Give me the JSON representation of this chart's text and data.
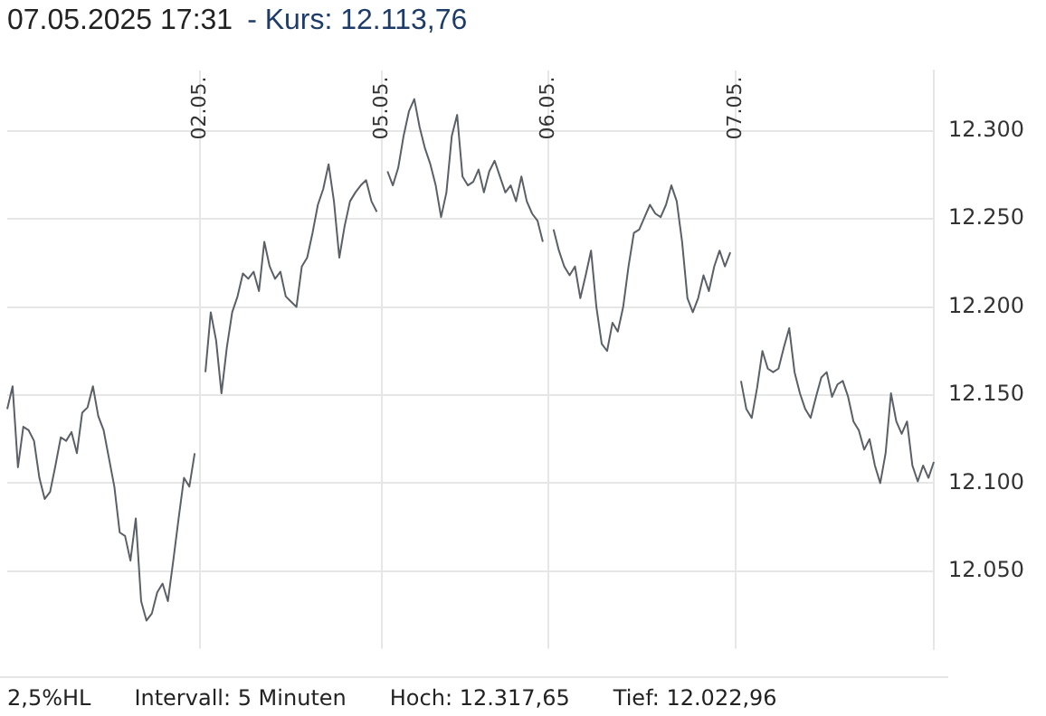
{
  "chart_data": {
    "type": "line",
    "title": "07.05.2025  17:31",
    "subtitle": "- Kurs: 12.113,76",
    "annotations": [
      "2,5%HL",
      "Intervall: 5 Minuten",
      "Hoch: 12.317,65",
      "Tief: 12.022,96"
    ],
    "categories": [
      null,
      null,
      null,
      null,
      null,
      null,
      null,
      null,
      null,
      null,
      null,
      null,
      null,
      null,
      null,
      null,
      null,
      null,
      null,
      null,
      null,
      null,
      null,
      null,
      null,
      null,
      null,
      null,
      null,
      null,
      null,
      null,
      null,
      null,
      null,
      null,
      "02.05.",
      null,
      null,
      null,
      null,
      null,
      null,
      null,
      null,
      null,
      null,
      null,
      null,
      null,
      null,
      null,
      null,
      null,
      null,
      null,
      null,
      null,
      null,
      null,
      null,
      null,
      null,
      null,
      null,
      null,
      null,
      null,
      null,
      null,
      "05.05.",
      null,
      null,
      null,
      null,
      null,
      null,
      null,
      null,
      null,
      null,
      null,
      null,
      null,
      null,
      null,
      null,
      null,
      null,
      null,
      null,
      null,
      null,
      null,
      null,
      null,
      null,
      null,
      null,
      null,
      null,
      "06.05.",
      null,
      null,
      null,
      null,
      null,
      null,
      null,
      null,
      null,
      null,
      null,
      null,
      null,
      null,
      null,
      null,
      null,
      null,
      null,
      null,
      null,
      null,
      null,
      null,
      null,
      null,
      null,
      null,
      null,
      null,
      null,
      null,
      null,
      null,
      "07.05.",
      null,
      null,
      null,
      null,
      null,
      null,
      null,
      null,
      null,
      null,
      null,
      null,
      null,
      null,
      null,
      null,
      null,
      null,
      null,
      null,
      null,
      null,
      null,
      null,
      null,
      null,
      null,
      null,
      null,
      null,
      null,
      null,
      null,
      null,
      null,
      null,
      null
    ],
    "series": [
      {
        "color": "#5b6067",
        "values": [
          12142,
          12155,
          12109,
          12132,
          12130,
          12124,
          12103,
          12091,
          12095,
          12110,
          12126,
          12124,
          12129,
          12117,
          12140,
          12143,
          12155,
          12138,
          12130,
          12114,
          12098,
          12072,
          12070,
          12056,
          12080,
          12033,
          12022,
          12026,
          12038,
          12043,
          12033,
          12056,
          12080,
          12103,
          12098,
          12117,
          null,
          12163,
          12197,
          12181,
          12151,
          12177,
          12197,
          12206,
          12219,
          12216,
          12220,
          12209,
          12237,
          12223,
          12216,
          12220,
          12206,
          12203,
          12200,
          12223,
          12228,
          12242,
          12258,
          12267,
          12281,
          12260,
          12228,
          12246,
          12260,
          12265,
          12269,
          12272,
          12260,
          12254,
          null,
          12277,
          12269,
          12279,
          12297,
          12311,
          12318,
          12302,
          12290,
          12281,
          12269,
          12251,
          12265,
          12297,
          12309,
          12274,
          12269,
          12271,
          12278,
          12265,
          12277,
          12283,
          12274,
          12265,
          12269,
          12260,
          12274,
          12260,
          12253,
          12249,
          12237,
          null,
          12244,
          12232,
          12223,
          12218,
          12223,
          12205,
          12218,
          12232,
          12200,
          12179,
          12175,
          12191,
          12186,
          12200,
          12223,
          12242,
          12244,
          12251,
          12258,
          12253,
          12251,
          12258,
          12269,
          12260,
          12237,
          12205,
          12197,
          12205,
          12218,
          12209,
          12223,
          12232,
          12223,
          12231,
          null,
          12158,
          12142,
          12137,
          12154,
          12175,
          12165,
          12163,
          12165,
          12177,
          12188,
          12163,
          12151,
          12142,
          12137,
          12149,
          12160,
          12163,
          12149,
          12156,
          12158,
          12149,
          12135,
          12130,
          12119,
          12125,
          12110,
          12100,
          12117,
          12151,
          12135,
          12128,
          12135,
          12110,
          12101,
          12110,
          12103,
          12112
        ]
      }
    ],
    "ylim": [
      12006,
      12334
    ],
    "yticks": [
      {
        "value": 12050,
        "label": "12.050"
      },
      {
        "value": 12100,
        "label": "12.100"
      },
      {
        "value": 12150,
        "label": "12.150"
      },
      {
        "value": 12200,
        "label": "12.200"
      },
      {
        "value": 12250,
        "label": "12.250"
      },
      {
        "value": 12300,
        "label": "12.300"
      }
    ],
    "grid": true,
    "marker": "none",
    "line_style": "solid",
    "legend": false
  }
}
